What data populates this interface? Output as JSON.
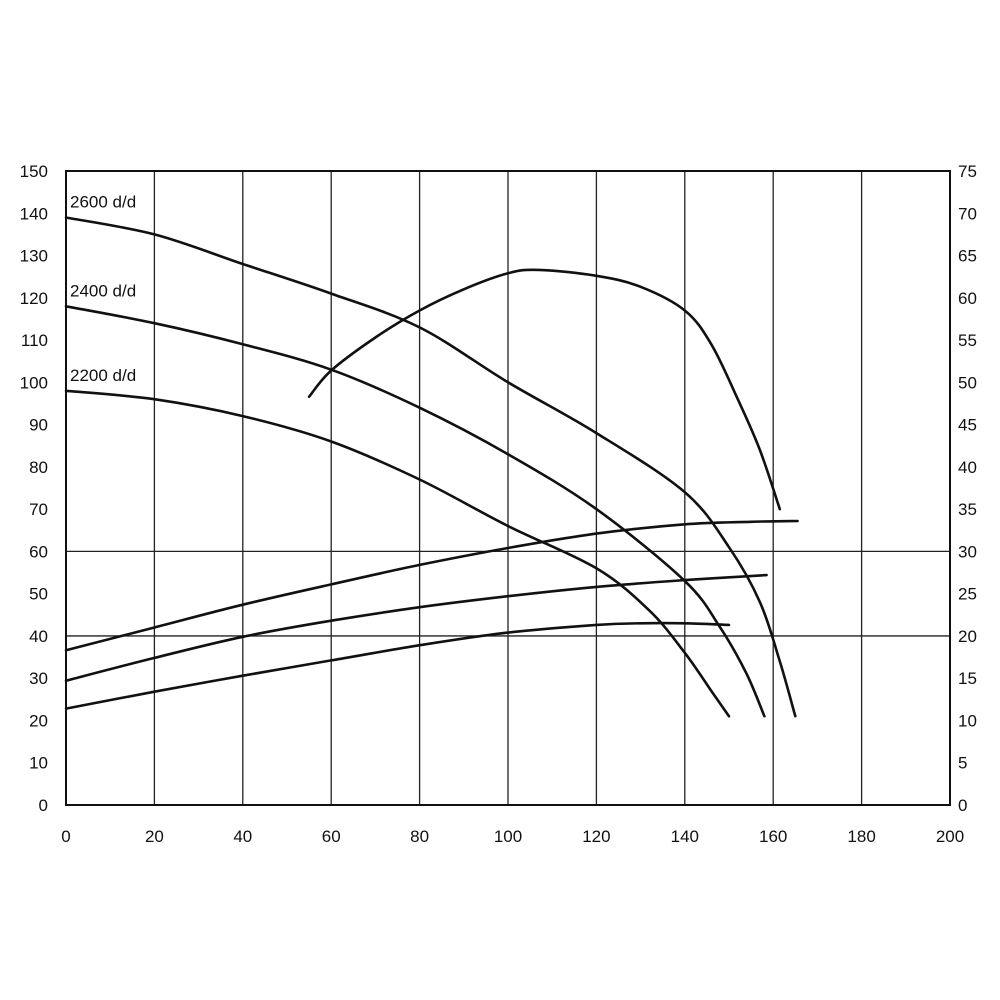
{
  "chart_data": {
    "type": "line",
    "xlim": [
      0,
      200
    ],
    "ylim": [
      0,
      150
    ],
    "y2lim": [
      0,
      75
    ],
    "x_ticks": [
      0,
      20,
      40,
      60,
      80,
      100,
      120,
      140,
      160,
      180,
      200
    ],
    "y_ticks": [
      0,
      10,
      20,
      30,
      40,
      50,
      60,
      70,
      80,
      90,
      100,
      110,
      120,
      130,
      140,
      150
    ],
    "y2_ticks": [
      0,
      5,
      10,
      15,
      20,
      25,
      30,
      35,
      40,
      45,
      50,
      55,
      60,
      65,
      70,
      75
    ],
    "grid": {
      "vertical": true,
      "horizontal_at": [
        40,
        60
      ]
    },
    "legend": "none (series labelled inline at left)",
    "colors": {
      "background": "#ffffff",
      "line": "#111111",
      "grid": "#222222"
    },
    "series": [
      {
        "name": "2600 d/d",
        "axis": "left",
        "x": [
          0,
          20,
          40,
          60,
          80,
          100,
          120,
          140,
          150,
          157,
          161.5,
          165
        ],
        "y": [
          139,
          135,
          128,
          121,
          113,
          100,
          88,
          74,
          61,
          48,
          34,
          21
        ]
      },
      {
        "name": "2400 d/d",
        "axis": "left",
        "x": [
          0,
          20,
          40,
          60,
          80,
          100,
          120,
          140,
          148,
          154,
          158
        ],
        "y": [
          118,
          114,
          109,
          103,
          94,
          83,
          70,
          53,
          42,
          31,
          21
        ]
      },
      {
        "name": "2200 d/d",
        "axis": "left",
        "x": [
          0,
          20,
          40,
          60,
          80,
          100,
          120,
          132,
          140,
          146,
          150
        ],
        "y": [
          98,
          96,
          92,
          86,
          77,
          66,
          56,
          46,
          36,
          27,
          21
        ]
      },
      {
        "axis": "right",
        "x": [
          55,
          60,
          70,
          80,
          90,
          100,
          107,
          120,
          130,
          140,
          146,
          152,
          157,
          161.5
        ],
        "y": [
          48.3,
          51.4,
          55.3,
          58.5,
          61.0,
          62.9,
          63.3,
          62.6,
          61.3,
          58.5,
          54.5,
          48.0,
          42.0,
          35.0
        ]
      },
      {
        "axis": "right",
        "x": [
          0,
          20,
          40,
          60,
          80,
          100,
          120,
          140,
          155,
          165.5
        ],
        "y": [
          18.3,
          21.0,
          23.7,
          26.1,
          28.4,
          30.4,
          32.1,
          33.2,
          33.5,
          33.6
        ]
      },
      {
        "axis": "right",
        "x": [
          0,
          20,
          40,
          60,
          80,
          100,
          120,
          140,
          158.5
        ],
        "y": [
          14.7,
          17.4,
          19.9,
          21.8,
          23.4,
          24.7,
          25.8,
          26.6,
          27.2
        ]
      },
      {
        "axis": "right",
        "x": [
          0,
          20,
          40,
          60,
          80,
          100,
          120,
          130,
          140,
          150
        ],
        "y": [
          11.4,
          13.4,
          15.3,
          17.1,
          18.9,
          20.4,
          21.3,
          21.5,
          21.5,
          21.3
        ]
      }
    ]
  }
}
